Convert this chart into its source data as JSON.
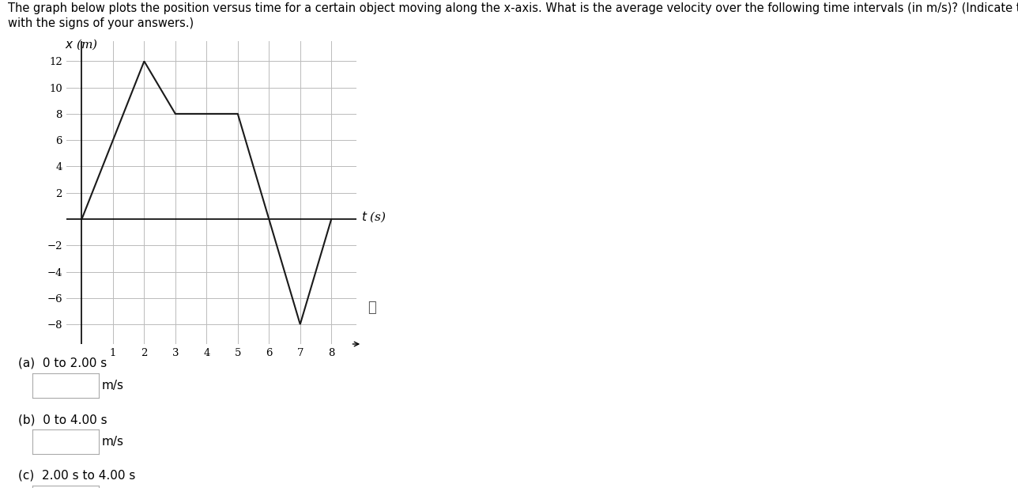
{
  "title_line1": "The graph below plots the position versus time for a certain object moving along the x-axis. What is the average velocity over the following time intervals (in m/s)? (Indicate the direction",
  "title_line2": "with the signs of your answers.)",
  "graph_t": [
    0,
    2,
    3,
    4,
    5,
    6,
    7,
    8
  ],
  "graph_x": [
    0,
    12,
    8,
    8,
    8,
    0,
    -8,
    0
  ],
  "xlim": [
    -0.5,
    8.8
  ],
  "ylim": [
    -9.5,
    13.5
  ],
  "xticks": [
    1,
    2,
    3,
    4,
    5,
    6,
    7,
    8
  ],
  "yticks": [
    -8,
    -6,
    -4,
    -2,
    2,
    4,
    6,
    8,
    10,
    12
  ],
  "line_color": "#1a1a1a",
  "grid_color": "#bbbbbb",
  "background_color": "#ffffff",
  "part_a_label": "(a)  0 to 2.00 s",
  "part_b_label": "(b)  0 to 4.00 s",
  "part_c_label": "(c)  2.00 s to 4.00 s",
  "unit_label": "m/s",
  "font_size_title": 10.5,
  "font_size_axis_label": 11,
  "font_size_ticks": 9.5,
  "font_size_parts": 11,
  "xlabel_text": "t (s)",
  "ylabel_text": "x (m)"
}
